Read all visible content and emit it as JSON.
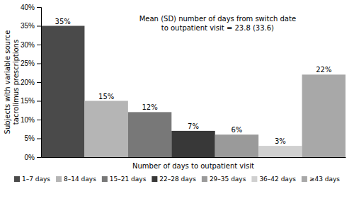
{
  "chart_data": {
    "type": "bar",
    "categories": [
      "1–7 days",
      "8–14 days",
      "15–21 days",
      "22–28 days",
      "29–35 days",
      "36–42 days",
      "≥43 days"
    ],
    "values": [
      35,
      15,
      12,
      7,
      6,
      3,
      22
    ],
    "value_labels": [
      "35%",
      "15%",
      "12%",
      "7%",
      "6%",
      "3%",
      "22%"
    ],
    "colors": [
      "#4a4a4a",
      "#b5b5b5",
      "#787878",
      "#383838",
      "#9a9a9a",
      "#d0d0d0",
      "#a8a8a8"
    ],
    "ylabel": "Subjects with variable source\ntacrolimus prescriptions",
    "xlabel": "Number of days to outpatient visit",
    "annotation": "Mean (SD) number of days from switch date\nto outpatient visit = 23.8 (33.6)",
    "ylim": [
      0,
      40
    ],
    "yticks": [
      {
        "value": 0,
        "label": "0%"
      },
      {
        "value": 5,
        "label": "5%"
      },
      {
        "value": 10,
        "label": "10%"
      },
      {
        "value": 15,
        "label": "15%"
      },
      {
        "value": 20,
        "label": "20%"
      },
      {
        "value": 25,
        "label": "25%"
      },
      {
        "value": 30,
        "label": "30%"
      },
      {
        "value": 35,
        "label": "35%"
      },
      {
        "value": 40,
        "label": "40%"
      }
    ],
    "data_labels": true,
    "tick_labels": "y",
    "legend": "bottom",
    "grid": false
  }
}
